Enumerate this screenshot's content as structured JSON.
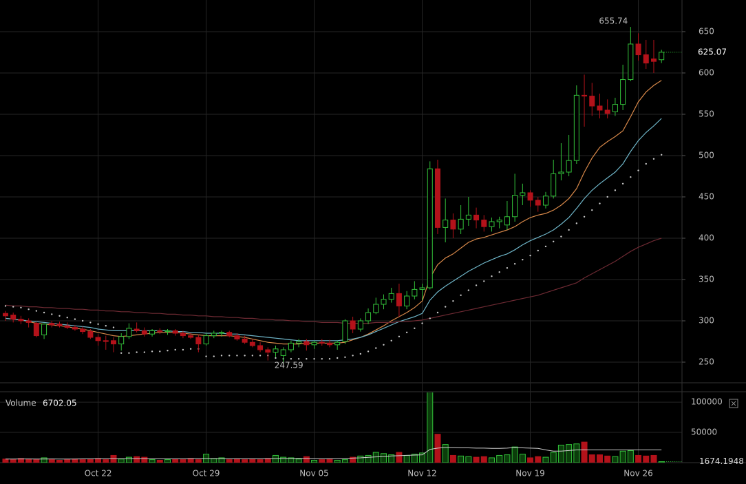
{
  "chart_data": [
    {
      "type": "candlestick",
      "categories": [
        null,
        null,
        null,
        null,
        null,
        null,
        null,
        null,
        null,
        null,
        null,
        null,
        "Oct 22",
        null,
        null,
        null,
        null,
        null,
        null,
        null,
        null,
        null,
        null,
        null,
        null,
        null,
        "Oct 29",
        null,
        null,
        null,
        null,
        null,
        null,
        null,
        null,
        null,
        null,
        null,
        null,
        null,
        "Nov 05",
        null,
        null,
        null,
        null,
        null,
        null,
        null,
        null,
        null,
        null,
        null,
        null,
        null,
        "Nov 12",
        null,
        null,
        null,
        null,
        null,
        null,
        null,
        null,
        null,
        null,
        null,
        null,
        null,
        "Nov 19",
        null,
        null,
        null,
        null,
        null,
        null,
        null,
        null,
        null,
        null,
        null,
        null,
        null,
        "Nov 26",
        null,
        null,
        null
      ],
      "open": [
        309,
        307,
        302,
        300,
        297,
        283,
        297,
        296,
        294,
        292,
        290,
        287,
        280,
        276,
        276,
        272,
        281,
        290,
        288,
        284,
        288,
        287,
        288,
        285,
        282,
        280,
        272,
        282,
        285,
        286,
        282,
        278,
        274,
        270,
        265,
        262,
        258,
        265,
        273,
        275,
        271,
        274,
        273,
        271,
        275,
        300,
        290,
        300,
        310,
        320,
        326,
        333,
        318,
        330,
        338,
        340,
        484,
        413,
        422,
        411,
        423,
        428,
        422,
        414,
        420,
        416,
        426,
        452,
        455,
        446,
        440,
        451,
        478,
        480,
        494,
        573,
        572,
        560,
        555,
        553,
        562,
        592,
        635,
        622,
        617,
        616
      ],
      "high": [
        312,
        310,
        306,
        303,
        299,
        297,
        300,
        299,
        298,
        295,
        293,
        290,
        284,
        282,
        280,
        285,
        297,
        298,
        292,
        290,
        291,
        290,
        290,
        288,
        285,
        283,
        285,
        288,
        288,
        288,
        285,
        282,
        278,
        274,
        268,
        270,
        268,
        276,
        278,
        278,
        276,
        278,
        277,
        276,
        302,
        305,
        303,
        315,
        328,
        332,
        340,
        345,
        336,
        348,
        345,
        493,
        495,
        448,
        430,
        440,
        450,
        437,
        428,
        425,
        426,
        445,
        478,
        466,
        458,
        450,
        456,
        495,
        515,
        525,
        585,
        598,
        588,
        575,
        568,
        570,
        610,
        655.74,
        648,
        640,
        640,
        628
      ],
      "low": [
        300,
        298,
        296,
        292,
        280,
        278,
        292,
        292,
        290,
        288,
        284,
        278,
        270,
        265,
        262,
        264,
        278,
        286,
        281,
        281,
        284,
        283,
        282,
        279,
        278,
        262,
        270,
        279,
        281,
        280,
        276,
        272,
        268,
        262,
        252,
        256,
        247.59,
        262,
        268,
        264,
        266,
        270,
        268,
        265,
        272,
        285,
        287,
        296,
        308,
        314,
        322,
        305,
        314,
        326,
        325,
        338,
        405,
        395,
        400,
        405,
        415,
        412,
        408,
        408,
        412,
        410,
        420,
        440,
        438,
        432,
        436,
        448,
        470,
        475,
        490,
        535,
        548,
        545,
        545,
        548,
        555,
        590,
        615,
        605,
        600,
        612
      ],
      "close": [
        306,
        302,
        300,
        298,
        282,
        296,
        295,
        294,
        292,
        290,
        287,
        280,
        276,
        275,
        272,
        281,
        291,
        288,
        284,
        288,
        287,
        288,
        285,
        282,
        280,
        272,
        282,
        285,
        286,
        282,
        278,
        274,
        270,
        265,
        262,
        266,
        265,
        273,
        275,
        271,
        274,
        273,
        271,
        274,
        300,
        290,
        300,
        310,
        320,
        326,
        333,
        318,
        330,
        338,
        340,
        484,
        413,
        422,
        411,
        423,
        428,
        422,
        414,
        420,
        422,
        426,
        452,
        455,
        446,
        440,
        451,
        478,
        480,
        494,
        573,
        572,
        560,
        555,
        551,
        562,
        592,
        635,
        622,
        612,
        614,
        625.07
      ],
      "ylim": [
        225,
        688.3
      ],
      "yticks": [
        250,
        300,
        350,
        400,
        450,
        500,
        550,
        600,
        650
      ],
      "colors": {
        "up": "#33c23a",
        "down": "#b3121a"
      },
      "grid": true,
      "series": [
        {
          "color": "#d9894a",
          "style": "solid",
          "values": [
            303,
            302,
            301,
            299,
            297,
            296,
            295,
            294,
            293,
            291,
            290,
            288,
            286,
            284,
            282,
            281,
            282,
            283,
            284,
            285,
            286,
            286,
            286,
            285,
            284,
            283,
            282,
            282,
            282,
            282,
            281,
            280,
            278,
            276,
            274,
            273,
            272,
            272,
            272,
            273,
            273,
            273,
            273,
            273,
            274,
            277,
            280,
            284,
            289,
            294,
            300,
            305,
            310,
            316,
            324,
            352,
            368,
            376,
            381,
            388,
            395,
            399,
            401,
            404,
            407,
            410,
            414,
            420,
            425,
            428,
            430,
            434,
            440,
            448,
            460,
            480,
            497,
            510,
            517,
            523,
            530,
            547,
            565,
            577,
            585,
            591
          ]
        },
        {
          "color": "#6fb6c9",
          "style": "solid",
          "values": [
            303,
            302,
            301,
            300,
            299,
            298,
            297,
            296,
            295,
            294,
            293,
            292,
            290,
            289,
            288,
            288,
            288,
            288,
            288,
            288,
            288,
            288,
            287,
            287,
            286,
            286,
            285,
            285,
            285,
            284,
            284,
            283,
            282,
            281,
            280,
            279,
            278,
            277,
            276,
            276,
            276,
            276,
            276,
            276,
            277,
            278,
            280,
            283,
            287,
            291,
            295,
            299,
            302,
            305,
            309,
            325,
            335,
            342,
            348,
            354,
            360,
            365,
            370,
            374,
            378,
            381,
            386,
            392,
            397,
            401,
            405,
            410,
            417,
            425,
            436,
            448,
            458,
            466,
            473,
            480,
            490,
            505,
            518,
            528,
            536,
            545
          ]
        },
        {
          "color": "#6e2a33",
          "style": "solid",
          "values": [
            319,
            318,
            318,
            317,
            317,
            316,
            316,
            315,
            315,
            314,
            314,
            313,
            313,
            312,
            312,
            311,
            311,
            310,
            310,
            309,
            309,
            308,
            308,
            307,
            307,
            306,
            306,
            305,
            305,
            304,
            304,
            303,
            303,
            302,
            302,
            301,
            301,
            300,
            300,
            299,
            299,
            298,
            298,
            298,
            297,
            297,
            297,
            297,
            298,
            298,
            298,
            299,
            299,
            300,
            301,
            303,
            305,
            307,
            309,
            311,
            313,
            315,
            317,
            319,
            321,
            323,
            325,
            327,
            329,
            331,
            334,
            337,
            340,
            343,
            346,
            352,
            357,
            362,
            367,
            372,
            378,
            384,
            389,
            393,
            397,
            400
          ]
        },
        {
          "color": "#c8c8c8",
          "style": "dotted",
          "values": [
            318,
            317,
            316,
            314,
            312,
            310,
            308,
            306,
            304,
            302,
            300,
            298,
            296,
            294,
            292,
            261,
            261,
            262,
            262,
            263,
            263,
            264,
            265,
            265,
            266,
            266,
            257,
            257,
            258,
            258,
            258,
            258,
            258,
            258,
            258,
            255,
            254,
            254,
            254,
            254,
            254,
            254,
            254,
            255,
            256,
            258,
            260,
            263,
            267,
            271,
            276,
            281,
            286,
            291,
            297,
            303,
            310,
            317,
            324,
            331,
            337,
            343,
            348,
            354,
            359,
            364,
            369,
            374,
            379,
            385,
            390,
            396,
            402,
            410,
            418,
            426,
            434,
            442,
            450,
            458,
            466,
            474,
            482,
            490,
            496,
            501
          ]
        }
      ]
    },
    {
      "type": "bar",
      "title": "Volume",
      "legend_value": 6702.05,
      "values": [
        6000,
        5000,
        7000,
        6000,
        5000,
        8000,
        5000,
        4000,
        5000,
        6000,
        5000,
        6000,
        7000,
        5000,
        12000,
        6000,
        9000,
        10000,
        9000,
        5000,
        4000,
        5000,
        6000,
        5000,
        7000,
        5000,
        14000,
        7000,
        8000,
        5000,
        6000,
        5000,
        6000,
        5000,
        7000,
        12000,
        9000,
        8000,
        6000,
        10000,
        4000,
        5000,
        6000,
        4000,
        5000,
        9000,
        11000,
        12000,
        17000,
        15000,
        13000,
        17000,
        12000,
        14000,
        16000,
        120000,
        47000,
        30000,
        12000,
        11000,
        10000,
        9000,
        10000,
        8000,
        12000,
        13000,
        26000,
        14000,
        8000,
        10000,
        9000,
        17000,
        29000,
        30000,
        31000,
        34000,
        13000,
        13000,
        11000,
        10000,
        19000,
        20000,
        12000,
        11000,
        12000,
        1674.1948
      ],
      "ylim": [
        0,
        116000
      ],
      "yticks": [
        50000,
        100000
      ],
      "grid": true,
      "series": [
        {
          "color": "#d0d0d0",
          "values": [
            6000,
            6000,
            6100,
            6100,
            6000,
            6000,
            6100,
            6000,
            6000,
            6000,
            6200,
            6300,
            6400,
            6500,
            6500,
            6600,
            6600,
            6500,
            6500,
            6400,
            6300,
            6200,
            6200,
            6300,
            6500,
            6800,
            6800,
            6700,
            6600,
            6500,
            6500,
            6500,
            6400,
            6500,
            6700,
            6800,
            6900,
            6900,
            7000,
            6800,
            6700,
            6600,
            6500,
            6600,
            7000,
            7500,
            8000,
            8800,
            9500,
            10000,
            11000,
            11500,
            12000,
            12500,
            13000,
            22000,
            24000,
            25000,
            25000,
            24500,
            24500,
            24000,
            24000,
            23500,
            23500,
            24000,
            25000,
            24500,
            24000,
            23500,
            21000,
            19000,
            19000,
            20000,
            21000,
            21000,
            21000,
            21000,
            21000,
            21000,
            21000,
            21000,
            21000,
            21000,
            21000,
            21000
          ]
        }
      ]
    }
  ]
}
